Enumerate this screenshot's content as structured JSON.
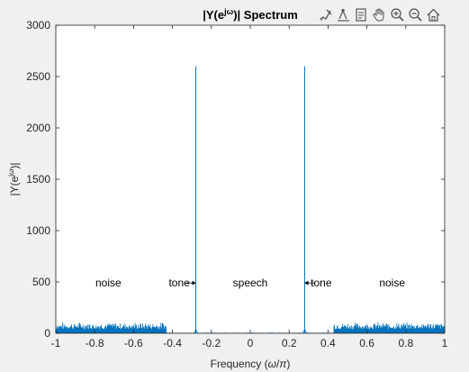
{
  "chart_data": {
    "type": "line",
    "title_main": "|Y(e",
    "title_sup": "jω",
    "title_end": ")| Spectrum",
    "xlabel_main": "Frequency (",
    "xlabel_omega": "ω",
    "xlabel_sep": "/",
    "xlabel_pi": "π",
    "xlabel_end": ")",
    "ylabel_main": "|Y(e",
    "ylabel_sup": "jω",
    "ylabel_end": ")|",
    "xlim": [
      -1,
      1
    ],
    "ylim": [
      0,
      3000
    ],
    "xticks": [
      {
        "value": -1,
        "label": "-1"
      },
      {
        "value": -0.8,
        "label": "-0.8"
      },
      {
        "value": -0.6,
        "label": "-0.6"
      },
      {
        "value": -0.4,
        "label": "-0.4"
      },
      {
        "value": -0.2,
        "label": "-0.2"
      },
      {
        "value": 0,
        "label": "0"
      },
      {
        "value": 0.2,
        "label": "0.2"
      },
      {
        "value": 0.4,
        "label": "0.4"
      },
      {
        "value": 0.6,
        "label": "0.6"
      },
      {
        "value": 0.8,
        "label": "0.8"
      },
      {
        "value": 1,
        "label": "1"
      }
    ],
    "yticks": [
      {
        "value": 0,
        "label": "0"
      },
      {
        "value": 500,
        "label": "500"
      },
      {
        "value": 1000,
        "label": "1000"
      },
      {
        "value": 1500,
        "label": "1500"
      },
      {
        "value": 2000,
        "label": "2000"
      },
      {
        "value": 2500,
        "label": "2500"
      },
      {
        "value": 3000,
        "label": "3000"
      }
    ],
    "grid": false,
    "line_color": "#0072bd",
    "noise_bands": [
      {
        "from": -1.0,
        "to": -0.43,
        "level_min": 40,
        "level_max": 110
      },
      {
        "from": 0.43,
        "to": 1.0,
        "level_min": 40,
        "level_max": 110
      }
    ],
    "speech_band": {
      "from": -0.43,
      "to": 0.43,
      "level": 4
    },
    "tone_peaks": [
      {
        "x": -0.28,
        "y": 2600
      },
      {
        "x": 0.28,
        "y": 2600
      }
    ],
    "annotations": [
      {
        "text": "noise",
        "x": -0.73,
        "y": 490,
        "arrow": "none"
      },
      {
        "text": "tone",
        "x": -0.365,
        "y": 490,
        "arrow": "right",
        "arrow_to": -0.28
      },
      {
        "text": "speech",
        "x": 0.0,
        "y": 490,
        "arrow": "none"
      },
      {
        "text": "tone",
        "x": 0.365,
        "y": 490,
        "arrow": "left",
        "arrow_to": 0.28
      },
      {
        "text": "noise",
        "x": 0.73,
        "y": 490,
        "arrow": "none"
      }
    ]
  },
  "toolbar": {
    "icons": [
      "brush-icon",
      "data-cursor-icon",
      "export-icon",
      "pan-hand-icon",
      "zoom-in-icon",
      "zoom-out-icon",
      "home-icon"
    ]
  }
}
